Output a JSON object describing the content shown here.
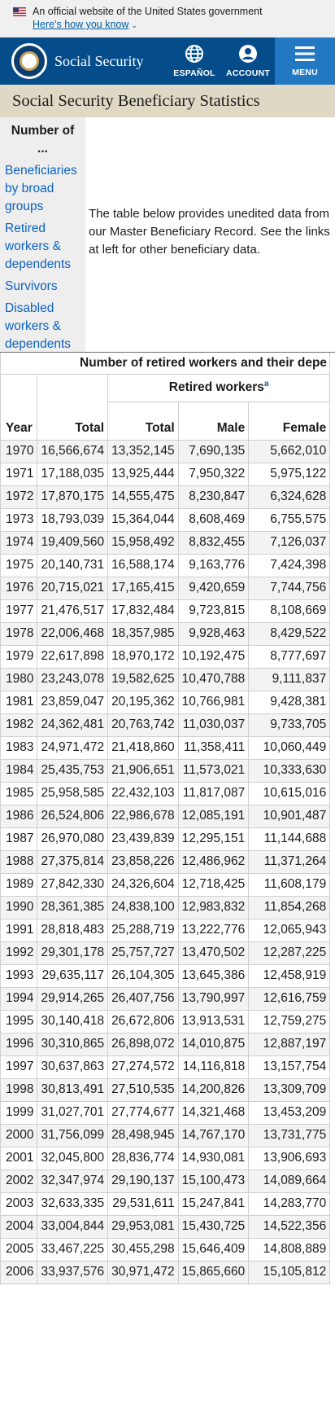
{
  "gov_banner": {
    "text": "An official website of the United States government",
    "link": "Here's how you know",
    "caret": "⌄"
  },
  "header": {
    "brand": "Social Security",
    "espanol": "ESPAÑOL",
    "account": "ACCOUNT",
    "menu": "MENU"
  },
  "page_title": "Social Security Beneficiary Statistics",
  "sidenav": {
    "heading": "Number of ...",
    "links": [
      "Beneficiaries by broad groups",
      "Retired workers & dependents",
      "Survivors",
      "Disabled workers & dependents"
    ]
  },
  "intro_text": "The table below provides unedited data from our Master Beneficiary Record. See the links at left for other beneficiary data.",
  "table": {
    "caption": "Number of retired workers and their depe",
    "group_header": "Retired workers",
    "footnote_marker": "a",
    "columns": [
      "Year",
      "Total",
      "Total",
      "Male",
      "Female"
    ],
    "rows": [
      [
        "1970",
        "16,566,674",
        "13,352,145",
        "7,690,135",
        "5,662,010"
      ],
      [
        "1971",
        "17,188,035",
        "13,925,444",
        "7,950,322",
        "5,975,122"
      ],
      [
        "1972",
        "17,870,175",
        "14,555,475",
        "8,230,847",
        "6,324,628"
      ],
      [
        "1973",
        "18,793,039",
        "15,364,044",
        "8,608,469",
        "6,755,575"
      ],
      [
        "1974",
        "19,409,560",
        "15,958,492",
        "8,832,455",
        "7,126,037"
      ],
      [
        "1975",
        "20,140,731",
        "16,588,174",
        "9,163,776",
        "7,424,398"
      ],
      [
        "1976",
        "20,715,021",
        "17,165,415",
        "9,420,659",
        "7,744,756"
      ],
      [
        "1977",
        "21,476,517",
        "17,832,484",
        "9,723,815",
        "8,108,669"
      ],
      [
        "1978",
        "22,006,468",
        "18,357,985",
        "9,928,463",
        "8,429,522"
      ],
      [
        "1979",
        "22,617,898",
        "18,970,172",
        "10,192,475",
        "8,777,697"
      ],
      [
        "1980",
        "23,243,078",
        "19,582,625",
        "10,470,788",
        "9,111,837"
      ],
      [
        "1981",
        "23,859,047",
        "20,195,362",
        "10,766,981",
        "9,428,381"
      ],
      [
        "1982",
        "24,362,481",
        "20,763,742",
        "11,030,037",
        "9,733,705"
      ],
      [
        "1983",
        "24,971,472",
        "21,418,860",
        "11,358,411",
        "10,060,449"
      ],
      [
        "1984",
        "25,435,753",
        "21,906,651",
        "11,573,021",
        "10,333,630"
      ],
      [
        "1985",
        "25,958,585",
        "22,432,103",
        "11,817,087",
        "10,615,016"
      ],
      [
        "1986",
        "26,524,806",
        "22,986,678",
        "12,085,191",
        "10,901,487"
      ],
      [
        "1987",
        "26,970,080",
        "23,439,839",
        "12,295,151",
        "11,144,688"
      ],
      [
        "1988",
        "27,375,814",
        "23,858,226",
        "12,486,962",
        "11,371,264"
      ],
      [
        "1989",
        "27,842,330",
        "24,326,604",
        "12,718,425",
        "11,608,179"
      ],
      [
        "1990",
        "28,361,385",
        "24,838,100",
        "12,983,832",
        "11,854,268"
      ],
      [
        "1991",
        "28,818,483",
        "25,288,719",
        "13,222,776",
        "12,065,943"
      ],
      [
        "1992",
        "29,301,178",
        "25,757,727",
        "13,470,502",
        "12,287,225"
      ],
      [
        "1993",
        "29,635,117",
        "26,104,305",
        "13,645,386",
        "12,458,919"
      ],
      [
        "1994",
        "29,914,265",
        "26,407,756",
        "13,790,997",
        "12,616,759"
      ],
      [
        "1995",
        "30,140,418",
        "26,672,806",
        "13,913,531",
        "12,759,275"
      ],
      [
        "1996",
        "30,310,865",
        "26,898,072",
        "14,010,875",
        "12,887,197"
      ],
      [
        "1997",
        "30,637,863",
        "27,274,572",
        "14,116,818",
        "13,157,754"
      ],
      [
        "1998",
        "30,813,491",
        "27,510,535",
        "14,200,826",
        "13,309,709"
      ],
      [
        "1999",
        "31,027,701",
        "27,774,677",
        "14,321,468",
        "13,453,209"
      ],
      [
        "2000",
        "31,756,099",
        "28,498,945",
        "14,767,170",
        "13,731,775"
      ],
      [
        "2001",
        "32,045,800",
        "28,836,774",
        "14,930,081",
        "13,906,693"
      ],
      [
        "2002",
        "32,347,974",
        "29,190,137",
        "15,100,473",
        "14,089,664"
      ],
      [
        "2003",
        "32,633,335",
        "29,531,611",
        "15,247,841",
        "14,283,770"
      ],
      [
        "2004",
        "33,004,844",
        "29,953,081",
        "15,430,725",
        "14,522,356"
      ],
      [
        "2005",
        "33,467,225",
        "30,455,298",
        "15,646,409",
        "14,808,889"
      ],
      [
        "2006",
        "33,937,576",
        "30,971,472",
        "15,865,660",
        "15,105,812"
      ]
    ]
  }
}
